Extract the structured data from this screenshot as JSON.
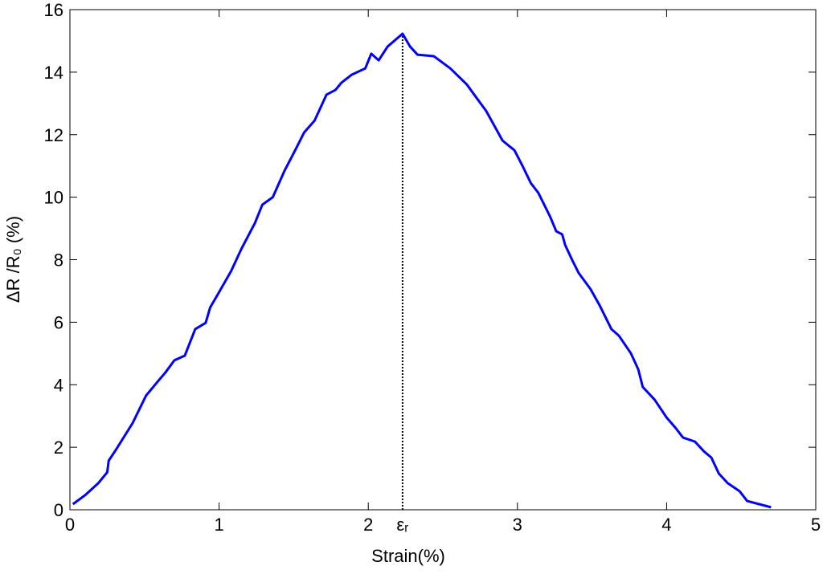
{
  "chart_data": {
    "type": "line",
    "xlabel": "Strain(%)",
    "ylabel": "ΔR /R₀ (%)",
    "xlim": [
      0,
      5
    ],
    "ylim": [
      0,
      16
    ],
    "xticks": [
      0,
      1,
      2,
      3,
      4,
      5
    ],
    "yticks": [
      0,
      2,
      4,
      6,
      8,
      10,
      12,
      14,
      16
    ],
    "grid": false,
    "annotations": [
      {
        "text": "εᵣ",
        "x": 2.23,
        "y": 15.23
      }
    ],
    "series": [
      {
        "color": "#0000ff",
        "x": [
          0.02,
          0.1,
          0.19,
          0.25,
          0.26,
          0.31,
          0.42,
          0.51,
          0.59,
          0.64,
          0.7,
          0.77,
          0.84,
          0.91,
          0.94,
          0.99,
          1.08,
          1.15,
          1.24,
          1.29,
          1.36,
          1.44,
          1.51,
          1.57,
          1.64,
          1.72,
          1.78,
          1.82,
          1.89,
          1.98,
          2.02,
          2.07,
          2.13,
          2.23,
          2.28,
          2.33,
          2.44,
          2.55,
          2.66,
          2.75,
          2.79,
          2.84,
          2.9,
          2.98,
          3.03,
          3.09,
          3.14,
          3.22,
          3.26,
          3.3,
          3.32,
          3.37,
          3.41,
          3.49,
          3.55,
          3.63,
          3.68,
          3.76,
          3.81,
          3.84,
          3.92,
          4.0,
          4.06,
          4.11,
          4.19,
          4.25,
          4.3,
          4.35,
          4.41,
          4.49,
          4.54,
          4.62,
          4.7
        ],
        "values": [
          0.18,
          0.46,
          0.85,
          1.2,
          1.57,
          1.93,
          2.77,
          3.65,
          4.11,
          4.39,
          4.78,
          4.93,
          5.78,
          5.98,
          6.47,
          6.88,
          7.63,
          8.35,
          9.17,
          9.76,
          10.0,
          10.86,
          11.5,
          12.07,
          12.45,
          13.28,
          13.43,
          13.66,
          13.92,
          14.12,
          14.59,
          14.38,
          14.82,
          15.23,
          14.82,
          14.56,
          14.51,
          14.12,
          13.61,
          13.02,
          12.76,
          12.33,
          11.81,
          11.5,
          11.04,
          10.45,
          10.14,
          9.37,
          8.91,
          8.81,
          8.47,
          7.96,
          7.58,
          7.06,
          6.55,
          5.78,
          5.57,
          5.01,
          4.49,
          3.93,
          3.52,
          2.95,
          2.62,
          2.31,
          2.18,
          1.87,
          1.67,
          1.16,
          0.85,
          0.59,
          0.28,
          0.18,
          0.08
        ]
      }
    ]
  }
}
